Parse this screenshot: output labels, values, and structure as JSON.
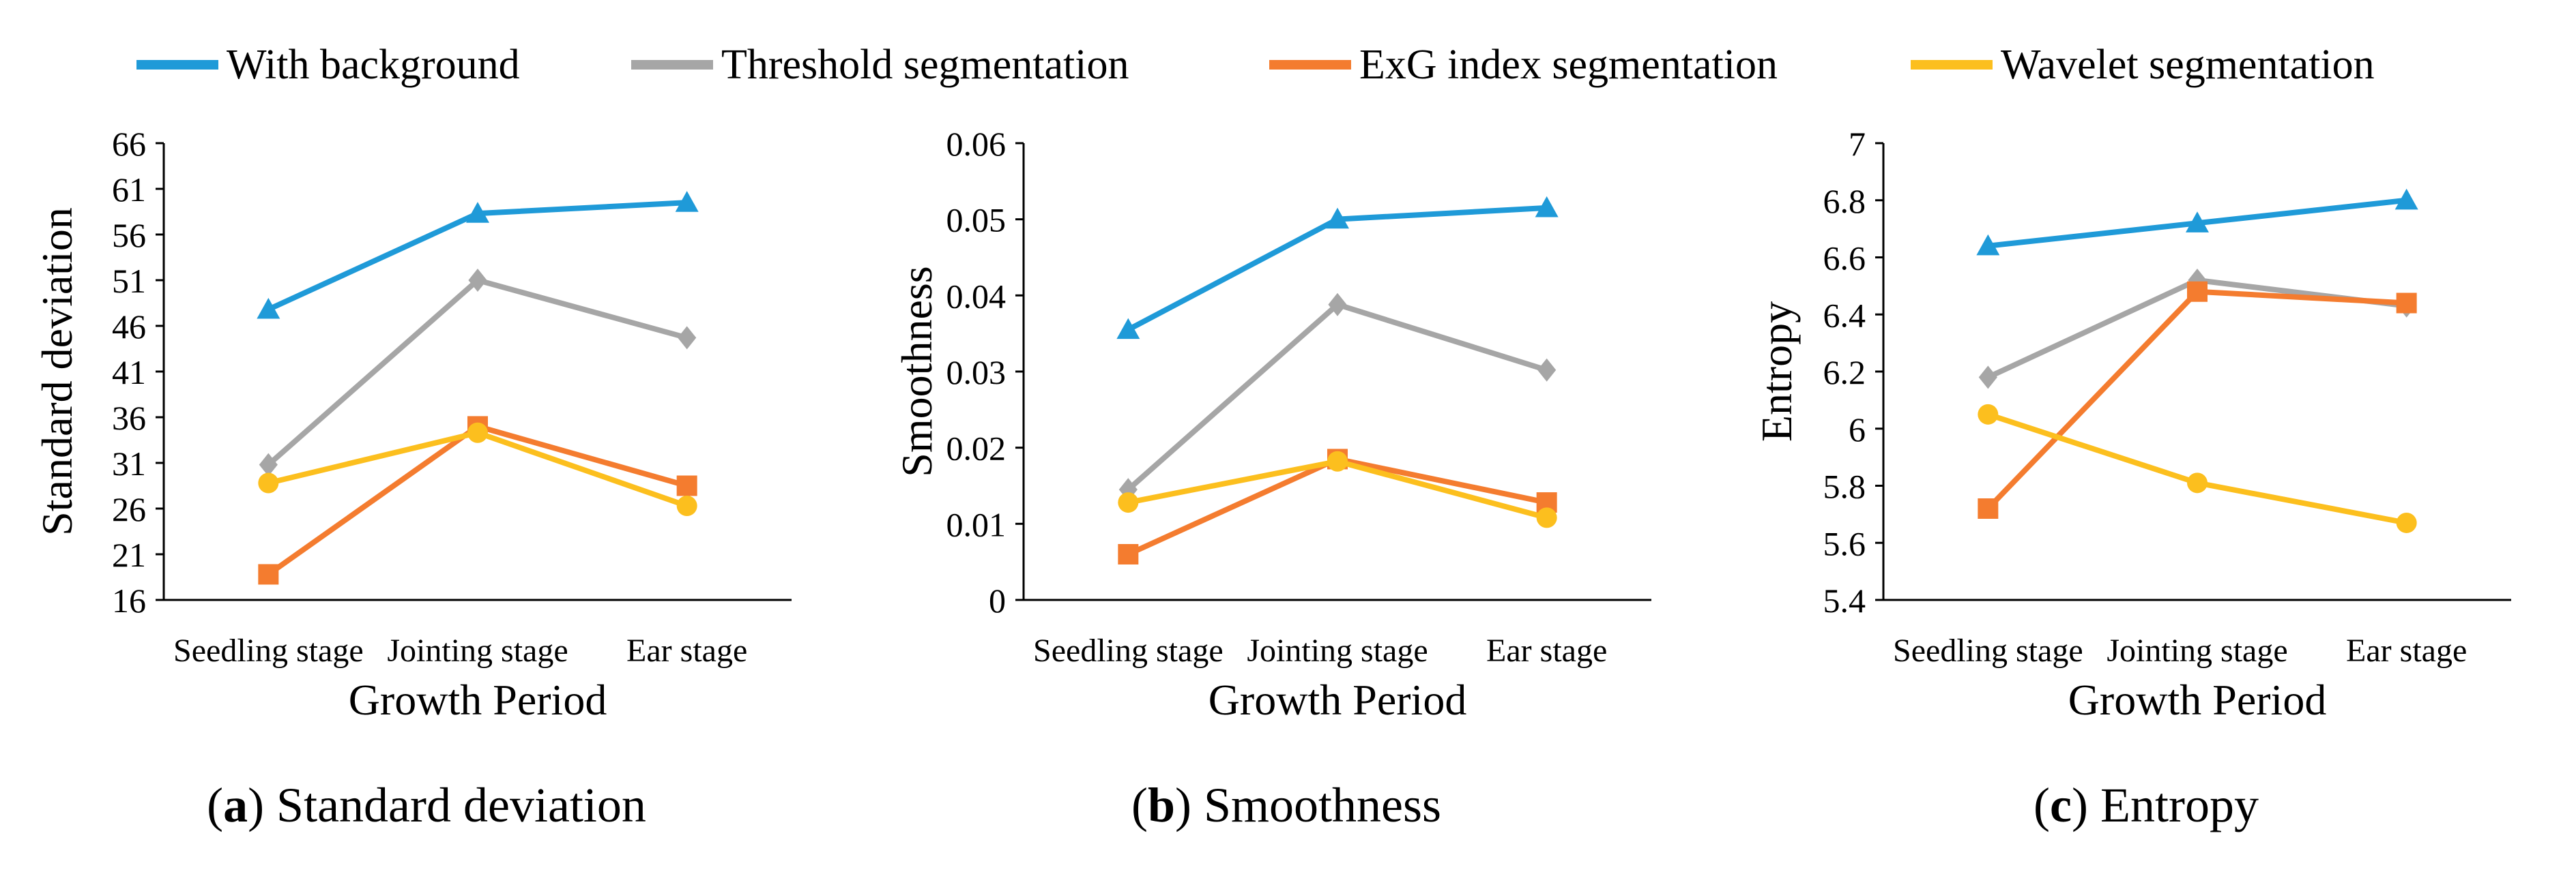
{
  "legend": [
    {
      "name": "With background",
      "color": "#1f9ad8",
      "marker": "triangle"
    },
    {
      "name": "Threshold segmentation",
      "color": "#a6a6a6",
      "marker": "diamond"
    },
    {
      "name": "ExG index segmentation",
      "color": "#f47c2f",
      "marker": "square"
    },
    {
      "name": "Wavelet segmentation",
      "color": "#fcbf1e",
      "marker": "circle"
    }
  ],
  "chart_data": [
    {
      "type": "line",
      "ylabel": "Standard deviation",
      "xlabel": "Growth Period",
      "categories": [
        "Seedling stage",
        "Jointing stage",
        "Ear stage"
      ],
      "ylim": [
        16,
        66
      ],
      "yticks": [
        "16",
        "21",
        "26",
        "31",
        "36",
        "41",
        "46",
        "51",
        "56",
        "61",
        "66"
      ],
      "series": [
        {
          "name": "With background",
          "values": [
            47.8,
            58.3,
            59.5
          ]
        },
        {
          "name": "Threshold segmentation",
          "values": [
            30.8,
            51.0,
            44.7
          ]
        },
        {
          "name": "ExG index segmentation",
          "values": [
            18.8,
            35.0,
            28.5
          ]
        },
        {
          "name": "Wavelet segmentation",
          "values": [
            28.8,
            34.3,
            26.3
          ]
        }
      ],
      "caption": {
        "letter": "a",
        "text": "Standard deviation"
      }
    },
    {
      "type": "line",
      "ylabel": "Smoothness",
      "xlabel": "Growth Period",
      "categories": [
        "Seedling stage",
        "Jointing stage",
        "Ear stage"
      ],
      "ylim": [
        0,
        0.06
      ],
      "yticks": [
        "0",
        "0.01",
        "0.02",
        "0.03",
        "0.04",
        "0.05",
        "0.06"
      ],
      "series": [
        {
          "name": "With background",
          "values": [
            0.0355,
            0.05,
            0.0515
          ]
        },
        {
          "name": "Threshold segmentation",
          "values": [
            0.0145,
            0.0388,
            0.0302
          ]
        },
        {
          "name": "ExG index segmentation",
          "values": [
            0.006,
            0.0185,
            0.0128
          ]
        },
        {
          "name": "Wavelet segmentation",
          "values": [
            0.0128,
            0.0182,
            0.0108
          ]
        }
      ],
      "caption": {
        "letter": "b",
        "text": "Smoothness"
      }
    },
    {
      "type": "line",
      "ylabel": "Entropy",
      "xlabel": "Growth Period",
      "categories": [
        "Seedling stage",
        "Jointing stage",
        "Ear stage"
      ],
      "ylim": [
        5.4,
        7
      ],
      "yticks": [
        "5.4",
        "5.6",
        "5.8",
        "6",
        "6.2",
        "6.4",
        "6.6",
        "6.8",
        "7"
      ],
      "series": [
        {
          "name": "With background",
          "values": [
            6.64,
            6.72,
            6.8
          ]
        },
        {
          "name": "Threshold segmentation",
          "values": [
            6.18,
            6.52,
            6.43
          ]
        },
        {
          "name": "ExG index segmentation",
          "values": [
            5.72,
            6.48,
            6.44
          ]
        },
        {
          "name": "Wavelet segmentation",
          "values": [
            6.05,
            5.81,
            5.67
          ]
        }
      ],
      "caption": {
        "letter": "c",
        "text": "Entropy"
      }
    }
  ]
}
